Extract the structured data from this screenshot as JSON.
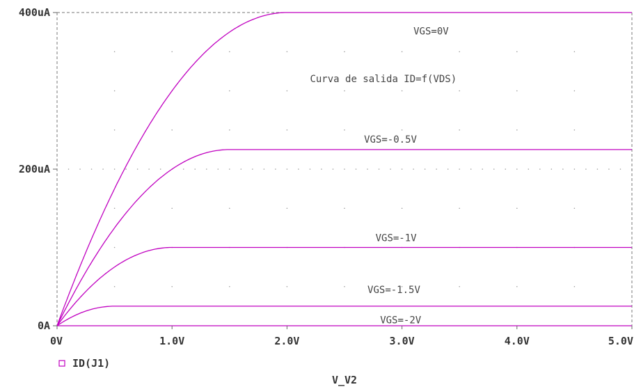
{
  "chart_data": {
    "type": "line",
    "xlabel": "V_V2",
    "ylabel": "",
    "xlim": [
      0,
      5
    ],
    "ylim": [
      0,
      400
    ],
    "x_unit": "V",
    "y_unit": "uA",
    "grid": "dotted",
    "x_ticks": [
      {
        "value": 0,
        "label": "0V"
      },
      {
        "value": 1,
        "label": "1.0V"
      },
      {
        "value": 2,
        "label": "2.0V"
      },
      {
        "value": 3,
        "label": "3.0V"
      },
      {
        "value": 4,
        "label": "4.0V"
      },
      {
        "value": 5,
        "label": "5.0V"
      }
    ],
    "y_ticks": [
      {
        "value": 0,
        "label": "0A"
      },
      {
        "value": 200,
        "label": "200uA"
      },
      {
        "value": 400,
        "label": "400uA"
      }
    ],
    "legend": {
      "placement": "bottom-left",
      "entries": [
        "ID(J1)"
      ]
    },
    "line_color": "#c000c0",
    "series": [
      {
        "vgs": 0,
        "idss": 400,
        "vsat": 2.0
      },
      {
        "vgs": -0.5,
        "idss": 225,
        "vsat": 1.5
      },
      {
        "vgs": -1,
        "idss": 100,
        "vsat": 1.0
      },
      {
        "vgs": -1.5,
        "idss": 25,
        "vsat": 0.5
      },
      {
        "vgs": -2,
        "idss": 0,
        "vsat": 0.0
      }
    ],
    "annotations": [
      {
        "text": "VGS=0V",
        "x": 3.1,
        "y": 372
      },
      {
        "text": "Curva de salida ID=f(VDS)",
        "x": 2.2,
        "y": 311
      },
      {
        "text": "VGS=-0.5V",
        "x": 2.67,
        "y": 234
      },
      {
        "text": "VGS=-1V",
        "x": 2.77,
        "y": 108
      },
      {
        "text": "VGS=-1.5V",
        "x": 2.7,
        "y": 42
      },
      {
        "text": "VGS=-2V",
        "x": 2.81,
        "y": 3
      }
    ]
  }
}
